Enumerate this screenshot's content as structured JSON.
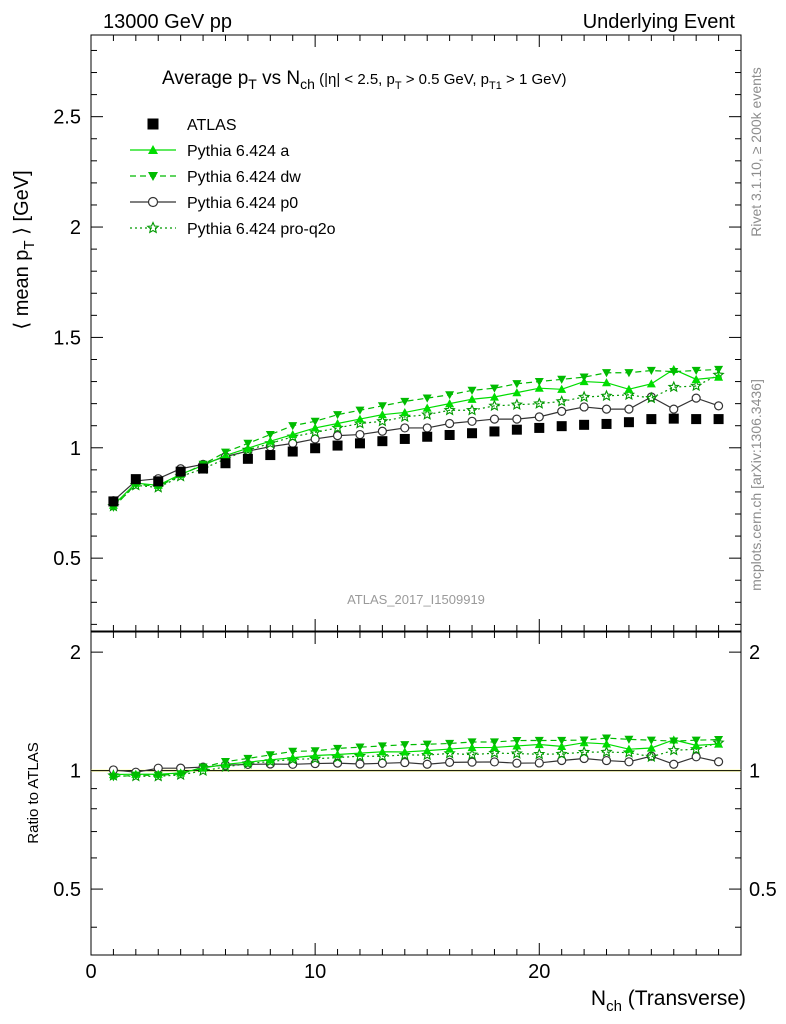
{
  "header": {
    "left": "13000 GeV pp",
    "right": "Underlying Event"
  },
  "side_labels": {
    "top": "Rivet 3.1.10, ≥ 200k events",
    "bottom": "mcplots.cern.ch [arXiv:1306.3436]"
  },
  "watermark": "ATLAS_2017_I1509919",
  "colors": {
    "atlas": "#000000",
    "a": "#00dd00",
    "dw": "#00bb00",
    "p0": "#333333",
    "q2o": "#009900",
    "ref_band": "#ffff66"
  },
  "chart_data": [
    {
      "type": "line",
      "title": "Average pT vs Nch (|η| < 2.5, pT > 0.5 GeV, pT1 > 1 GeV)",
      "xlabel": "Nch (Transverse)",
      "ylabel": "⟨ mean pT ⟩ [GeV]",
      "xlim": [
        0,
        29
      ],
      "ylim": [
        0.17,
        2.87
      ],
      "yticks": [
        0.5,
        1,
        1.5,
        2,
        2.5
      ],
      "ytick_labels": [
        "0.5",
        "1",
        "1.5",
        "2",
        "2.5"
      ],
      "legend_position": "top-left",
      "x": [
        1,
        2,
        3,
        4,
        5,
        6,
        7,
        8,
        9,
        10,
        11,
        12,
        13,
        14,
        15,
        16,
        17,
        18,
        19,
        20,
        21,
        22,
        23,
        24,
        25,
        26,
        27,
        28
      ],
      "series": [
        {
          "name": "ATLAS",
          "key": "atlas",
          "marker": "square",
          "line": "none",
          "values": [
            0.757,
            0.858,
            0.848,
            0.892,
            0.906,
            0.93,
            0.95,
            0.967,
            0.983,
            0.998,
            1.01,
            1.02,
            1.03,
            1.04,
            1.05,
            1.058,
            1.066,
            1.074,
            1.082,
            1.09,
            1.098,
            1.104,
            1.108,
            1.116,
            1.13,
            1.132,
            1.13,
            1.13
          ]
        },
        {
          "name": "Pythia 6.424 a",
          "key": "a",
          "marker": "triangle-up",
          "line": "solid",
          "values": [
            0.74,
            0.84,
            0.83,
            0.88,
            0.92,
            0.965,
            0.998,
            1.03,
            1.06,
            1.09,
            1.11,
            1.13,
            1.15,
            1.16,
            1.18,
            1.2,
            1.22,
            1.23,
            1.25,
            1.27,
            1.265,
            1.3,
            1.295,
            1.265,
            1.29,
            1.355,
            1.31,
            1.32
          ]
        },
        {
          "name": "Pythia 6.424 dw",
          "key": "dw",
          "marker": "triangle-down",
          "line": "dashed",
          "values": [
            0.73,
            0.835,
            0.825,
            0.875,
            0.925,
            0.98,
            1.02,
            1.06,
            1.1,
            1.12,
            1.15,
            1.17,
            1.19,
            1.21,
            1.225,
            1.24,
            1.26,
            1.27,
            1.29,
            1.3,
            1.31,
            1.32,
            1.34,
            1.34,
            1.35,
            1.345,
            1.35,
            1.355
          ]
        },
        {
          "name": "Pythia 6.424 p0",
          "key": "p0",
          "marker": "circle-open",
          "line": "solid",
          "values": [
            0.76,
            0.85,
            0.86,
            0.905,
            0.925,
            0.96,
            0.985,
            1.005,
            1.02,
            1.04,
            1.055,
            1.06,
            1.075,
            1.09,
            1.09,
            1.11,
            1.12,
            1.13,
            1.13,
            1.14,
            1.165,
            1.185,
            1.175,
            1.175,
            1.23,
            1.175,
            1.225,
            1.19
          ]
        },
        {
          "name": "Pythia 6.424 pro-q2o",
          "key": "q2o",
          "marker": "star",
          "line": "dotted",
          "values": [
            0.735,
            0.83,
            0.82,
            0.87,
            0.905,
            0.95,
            0.99,
            1.02,
            1.05,
            1.07,
            1.09,
            1.11,
            1.12,
            1.14,
            1.15,
            1.17,
            1.17,
            1.19,
            1.195,
            1.2,
            1.21,
            1.23,
            1.235,
            1.24,
            1.225,
            1.275,
            1.28,
            1.33
          ]
        }
      ]
    },
    {
      "type": "line",
      "ylabel": "Ratio to ATLAS",
      "xlabel": "Nch (Transverse)",
      "xlim": [
        0,
        29
      ],
      "ylim": [
        0.34,
        2.25
      ],
      "yticks": [
        0.5,
        1,
        2
      ],
      "ytick_labels": [
        "0.5",
        "1",
        "2"
      ],
      "xticks": [
        0,
        10,
        20
      ],
      "xtick_labels": [
        "0",
        "10",
        "20"
      ],
      "reference": 1.0
    }
  ]
}
